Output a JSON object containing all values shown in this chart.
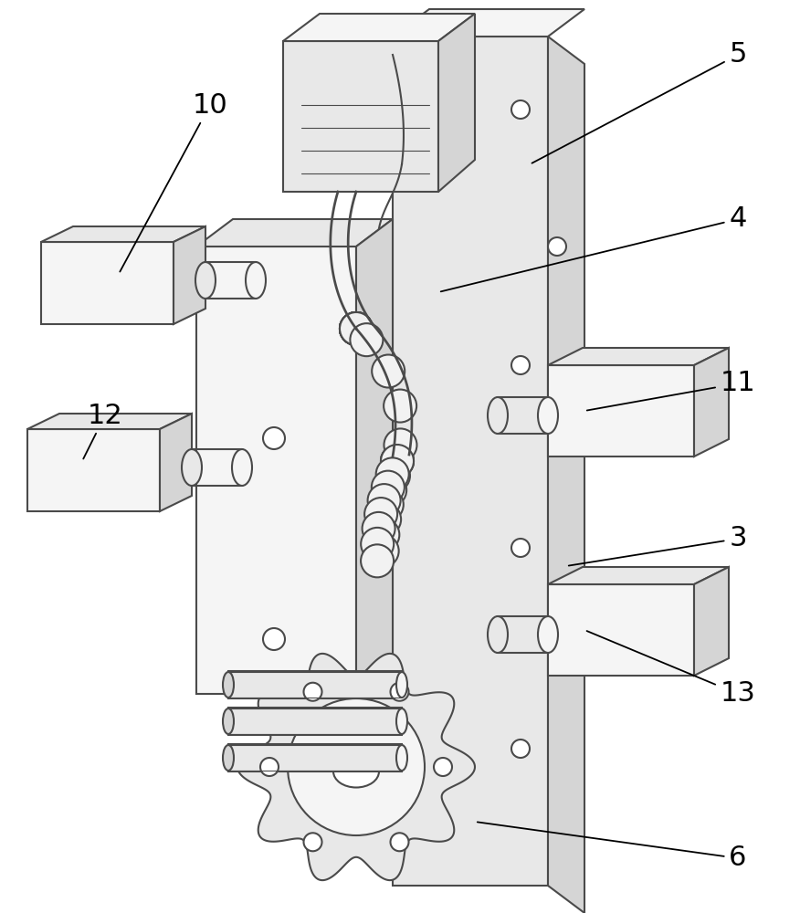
{
  "bg_color": "#ffffff",
  "line_color": "#4a4a4a",
  "line_width": 1.5,
  "fill_light": "#f5f5f5",
  "fill_mid": "#e8e8e8",
  "fill_dark": "#d5d5d5",
  "label_fontsize": 22
}
